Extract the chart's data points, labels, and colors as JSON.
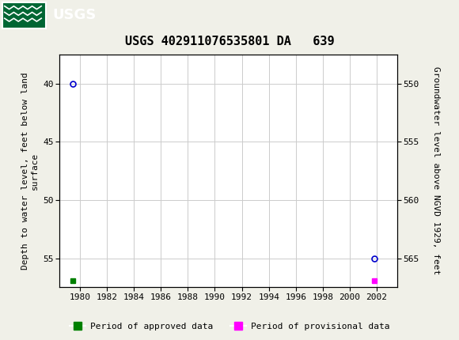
{
  "title": "USGS 402911076535801 DA   639",
  "header_color": "#006633",
  "background_color": "#f0f0e8",
  "plot_bg_color": "#ffffff",
  "grid_color": "#cccccc",
  "left_ylabel": "Depth to water level, feet below land\nsurface",
  "right_ylabel": "Groundwater level above NGVD 1929, feet",
  "xlim": [
    1978.5,
    2003.5
  ],
  "xticks": [
    1980,
    1982,
    1984,
    1986,
    1988,
    1990,
    1992,
    1994,
    1996,
    1998,
    2000,
    2002
  ],
  "ylim_left": [
    37.5,
    57.5
  ],
  "yticks_left": [
    40,
    45,
    50,
    55
  ],
  "ylim_right": [
    547.5,
    567.5
  ],
  "yticks_right": [
    550,
    555,
    560,
    565
  ],
  "data_points": [
    {
      "x": 1979.5,
      "y_depth": 40.0,
      "color": "#0000cc"
    },
    {
      "x": 2001.8,
      "y_depth": 55.0,
      "color": "#0000cc"
    }
  ],
  "period_markers_green": {
    "x": 1979.5,
    "color": "#008000"
  },
  "period_markers_magenta": {
    "x": 2001.8,
    "color": "#ff00ff"
  },
  "legend_items": [
    {
      "label": "Period of approved data",
      "color": "#008000"
    },
    {
      "label": "Period of provisional data",
      "color": "#ff00ff"
    }
  ],
  "title_fontsize": 11,
  "axis_label_fontsize": 8,
  "tick_fontsize": 8,
  "legend_fontsize": 8
}
